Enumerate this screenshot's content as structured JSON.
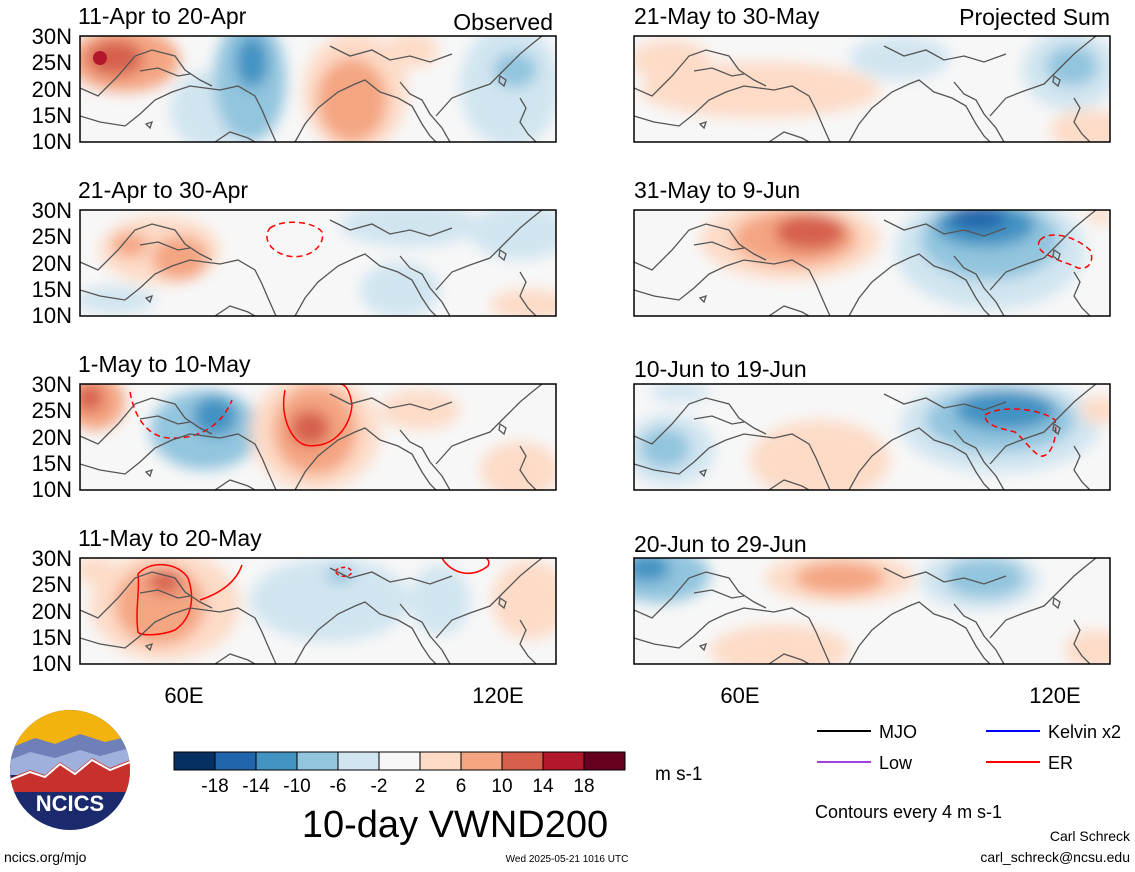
{
  "figure": {
    "title": "10-day VWND200",
    "units": "m s-1",
    "contour_note": "Contours every 4 m s-1",
    "author": "Carl Schreck",
    "email": "carl_schreck@ncsu.edu",
    "site": "ncics.org/mjo",
    "timestamp": "Wed 2025-05-21 1016 UTC",
    "logo_text": "NCICS"
  },
  "columns": {
    "left_label": "Observed",
    "right_label": "Projected Sum"
  },
  "lat_labels": [
    "30N",
    "25N",
    "20N",
    "15N",
    "10N"
  ],
  "lon_labels": [
    "60E",
    "120E"
  ],
  "panels_left": [
    {
      "period": "11-Apr to 20-Apr"
    },
    {
      "period": "21-Apr to 30-Apr"
    },
    {
      "period": "1-May to 10-May"
    },
    {
      "period": "11-May to 20-May"
    }
  ],
  "panels_right": [
    {
      "period": "21-May to 30-May"
    },
    {
      "period": "31-May to 9-Jun"
    },
    {
      "period": "10-Jun to 19-Jun"
    },
    {
      "period": "20-Jun to 29-Jun"
    }
  ],
  "colorbar": {
    "labels": [
      "-18",
      "-14",
      "-10",
      "-6",
      "-2",
      "2",
      "6",
      "10",
      "14",
      "18"
    ],
    "colors": [
      "#053061",
      "#2166ac",
      "#4393c3",
      "#92c5de",
      "#d1e5f0",
      "#f7f7f7",
      "#fddbc7",
      "#f4a582",
      "#d6604d",
      "#b2182b",
      "#67001f"
    ]
  },
  "legend": [
    {
      "label": "MJO",
      "color": "#000000"
    },
    {
      "label": "Kelvin x2",
      "color": "#0000ff"
    },
    {
      "label": "Low",
      "color": "#a040e0"
    },
    {
      "label": "ER",
      "color": "#ff0000"
    }
  ],
  "colors": {
    "coast": "#555555",
    "frame": "#000000"
  }
}
